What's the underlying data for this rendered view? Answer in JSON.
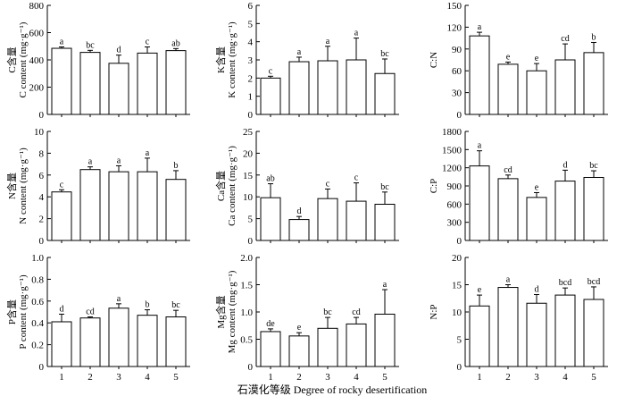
{
  "figure": {
    "xaxis_title": "石漠化等级 Degree of rocky desertification"
  },
  "chart_data": [
    {
      "id": "C",
      "type": "bar",
      "categories": [
        "1",
        "2",
        "3",
        "4",
        "5"
      ],
      "values": [
        485,
        455,
        375,
        450,
        468
      ],
      "errors": [
        10,
        15,
        60,
        45,
        15
      ],
      "letters": [
        "a",
        "bc",
        "d",
        "c",
        "ab"
      ],
      "ylabel_cn": "C含量",
      "ylabel_en": "C content (mg·g⁻¹)",
      "ylim": [
        0,
        800
      ],
      "yticks": [
        0,
        200,
        400,
        600,
        800
      ],
      "ytick_labels": [
        "0",
        "200",
        "400",
        "600",
        "800"
      ]
    },
    {
      "id": "K",
      "type": "bar",
      "categories": [
        "1",
        "2",
        "3",
        "4",
        "5"
      ],
      "values": [
        2.0,
        2.9,
        2.95,
        3.0,
        2.25
      ],
      "errors": [
        0.1,
        0.25,
        0.8,
        1.2,
        0.8
      ],
      "letters": [
        "c",
        "a",
        "a",
        "a",
        "bc"
      ],
      "ylabel_cn": "K含量",
      "ylabel_en": "K content (mg·g⁻¹)",
      "ylim": [
        0,
        6
      ],
      "yticks": [
        0,
        1,
        2,
        3,
        4,
        5,
        6
      ],
      "ytick_labels": [
        "0",
        "1",
        "2",
        "3",
        "4",
        "5",
        "6"
      ]
    },
    {
      "id": "CN",
      "type": "bar",
      "categories": [
        "1",
        "2",
        "3",
        "4",
        "5"
      ],
      "values": [
        108,
        69,
        60,
        75,
        85
      ],
      "errors": [
        5,
        3,
        10,
        22,
        14
      ],
      "letters": [
        "a",
        "e",
        "e",
        "cd",
        "b"
      ],
      "ylabel_cn": "",
      "ylabel_en": "C:N",
      "ylim": [
        0,
        150
      ],
      "yticks": [
        0,
        30,
        60,
        90,
        120,
        150
      ],
      "ytick_labels": [
        "0",
        "30",
        "60",
        "90",
        "120",
        "150"
      ]
    },
    {
      "id": "N",
      "type": "bar",
      "categories": [
        "1",
        "2",
        "3",
        "4",
        "5"
      ],
      "values": [
        4.45,
        6.5,
        6.3,
        6.3,
        5.6
      ],
      "errors": [
        0.2,
        0.25,
        0.55,
        1.25,
        0.8
      ],
      "letters": [
        "c",
        "a",
        "a",
        "a",
        "b"
      ],
      "ylabel_cn": "N含量",
      "ylabel_en": "N content (mg·g⁻¹)",
      "ylim": [
        0,
        10
      ],
      "yticks": [
        0,
        2,
        4,
        6,
        8,
        10
      ],
      "ytick_labels": [
        "0",
        "2",
        "4",
        "6",
        "8",
        "10"
      ]
    },
    {
      "id": "Ca",
      "type": "bar",
      "categories": [
        "1",
        "2",
        "3",
        "4",
        "5"
      ],
      "values": [
        9.8,
        4.8,
        9.6,
        9.0,
        8.3
      ],
      "errors": [
        3.2,
        0.7,
        2.2,
        4.2,
        2.8
      ],
      "letters": [
        "ab",
        "d",
        "c",
        "c",
        "bc"
      ],
      "ylabel_cn": "Ca含量",
      "ylabel_en": "Ca content (mg·g⁻¹)",
      "ylim": [
        0,
        25
      ],
      "yticks": [
        0,
        5,
        10,
        15,
        20,
        25
      ],
      "ytick_labels": [
        "0",
        "5",
        "10",
        "15",
        "20",
        "25"
      ]
    },
    {
      "id": "CP",
      "type": "bar",
      "categories": [
        "1",
        "2",
        "3",
        "4",
        "5"
      ],
      "values": [
        1230,
        1020,
        710,
        980,
        1040
      ],
      "errors": [
        250,
        60,
        80,
        180,
        110
      ],
      "letters": [
        "a",
        "cd",
        "e",
        "d",
        "bc"
      ],
      "ylabel_cn": "",
      "ylabel_en": "C:P",
      "ylim": [
        0,
        1800
      ],
      "yticks": [
        0,
        300,
        600,
        900,
        1200,
        1500,
        1800
      ],
      "ytick_labels": [
        "0",
        "300",
        "600",
        "900",
        "1200",
        "1500",
        "1800"
      ]
    },
    {
      "id": "P",
      "type": "bar",
      "categories": [
        "1",
        "2",
        "3",
        "4",
        "5"
      ],
      "values": [
        0.41,
        0.445,
        0.535,
        0.47,
        0.455
      ],
      "errors": [
        0.07,
        0.01,
        0.04,
        0.05,
        0.06
      ],
      "letters": [
        "d",
        "cd",
        "a",
        "b",
        "bc"
      ],
      "ylabel_cn": "P含量",
      "ylabel_en": "P content (mg·g⁻¹)",
      "ylim": [
        0,
        1.0
      ],
      "yticks": [
        0,
        0.2,
        0.4,
        0.6,
        0.8,
        1.0
      ],
      "ytick_labels": [
        "0",
        "0.2",
        "0.4",
        "0.6",
        "0.8",
        "1.0"
      ]
    },
    {
      "id": "Mg",
      "type": "bar",
      "categories": [
        "1",
        "2",
        "3",
        "4",
        "5"
      ],
      "values": [
        0.64,
        0.56,
        0.7,
        0.78,
        0.96
      ],
      "errors": [
        0.05,
        0.06,
        0.2,
        0.12,
        0.45
      ],
      "letters": [
        "de",
        "e",
        "bc",
        "cd",
        "a"
      ],
      "ylabel_cn": "Mg含量",
      "ylabel_en": "Mg content (mg·g⁻¹)",
      "ylim": [
        0,
        2.0
      ],
      "yticks": [
        0,
        0.5,
        1.0,
        1.5,
        2.0
      ],
      "ytick_labels": [
        "0",
        "0.5",
        "1.0",
        "1.5",
        "2.0"
      ]
    },
    {
      "id": "NP",
      "type": "bar",
      "categories": [
        "1",
        "2",
        "3",
        "4",
        "5"
      ],
      "values": [
        11.1,
        14.5,
        11.6,
        13.1,
        12.3
      ],
      "errors": [
        2.0,
        0.5,
        1.6,
        1.3,
        2.3
      ],
      "letters": [
        "e",
        "a",
        "d",
        "bcd",
        "bcd"
      ],
      "ylabel_cn": "",
      "ylabel_en": "N:P",
      "ylim": [
        0,
        20
      ],
      "yticks": [
        0,
        5,
        10,
        15,
        20
      ],
      "ytick_labels": [
        "0",
        "5",
        "10",
        "15",
        "20"
      ]
    }
  ]
}
